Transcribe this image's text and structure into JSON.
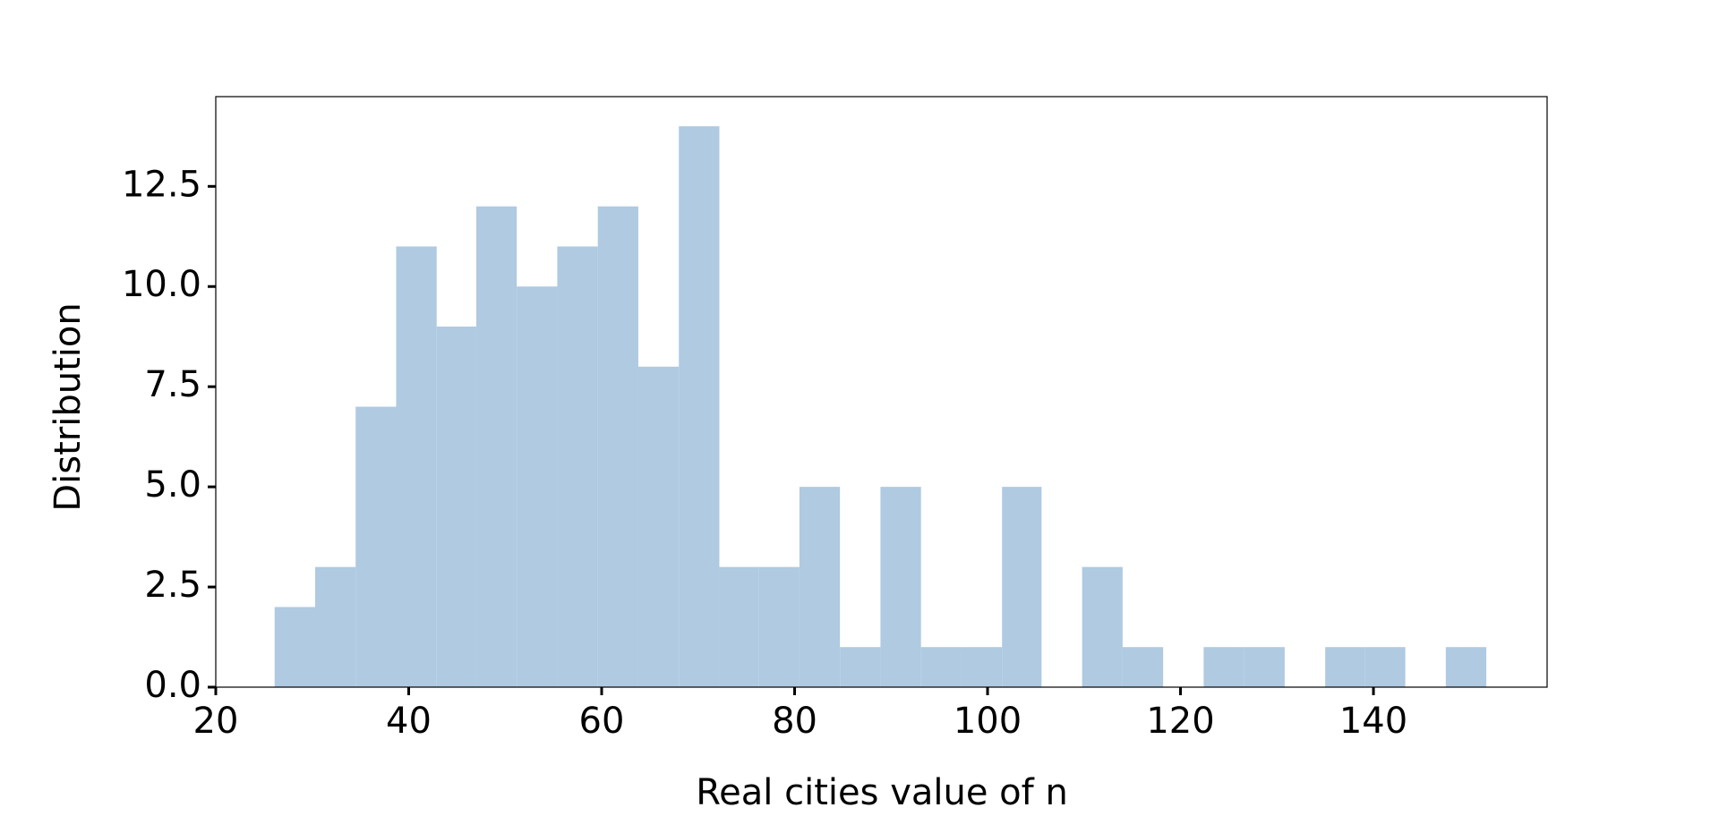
{
  "chart_data": {
    "type": "histogram",
    "xlabel": "Real cities value of n",
    "ylabel": "Distribution",
    "bins": [
      26.1,
      30.3,
      34.5,
      38.7,
      42.9,
      47.0,
      51.2,
      55.4,
      59.6,
      63.8,
      68.0,
      72.2,
      76.3,
      80.5,
      84.7,
      88.9,
      93.1,
      97.3,
      101.5,
      105.6,
      109.8,
      114.0,
      118.2,
      122.4,
      126.6,
      130.8,
      135.0,
      139.1,
      143.3,
      147.5,
      151.7
    ],
    "values": [
      2,
      3,
      7,
      11,
      9,
      12,
      10,
      11,
      12,
      8,
      14,
      3,
      3,
      5,
      1,
      5,
      1,
      1,
      5,
      0,
      3,
      1,
      0,
      1,
      1,
      0,
      1,
      1,
      0,
      1
    ],
    "color": "#afcae1",
    "xlim": [
      20,
      158
    ],
    "xticks": [
      20,
      40,
      60,
      80,
      100,
      120,
      140
    ],
    "ylim": [
      0,
      14.74
    ],
    "yticks": [
      {
        "value": 0,
        "label": "0.0"
      },
      {
        "value": 2.5,
        "label": "2.5"
      },
      {
        "value": 5,
        "label": "5.0"
      },
      {
        "value": 7.5,
        "label": "7.5"
      },
      {
        "value": 10,
        "label": "10.0"
      },
      {
        "value": 12.5,
        "label": "12.5"
      }
    ]
  }
}
